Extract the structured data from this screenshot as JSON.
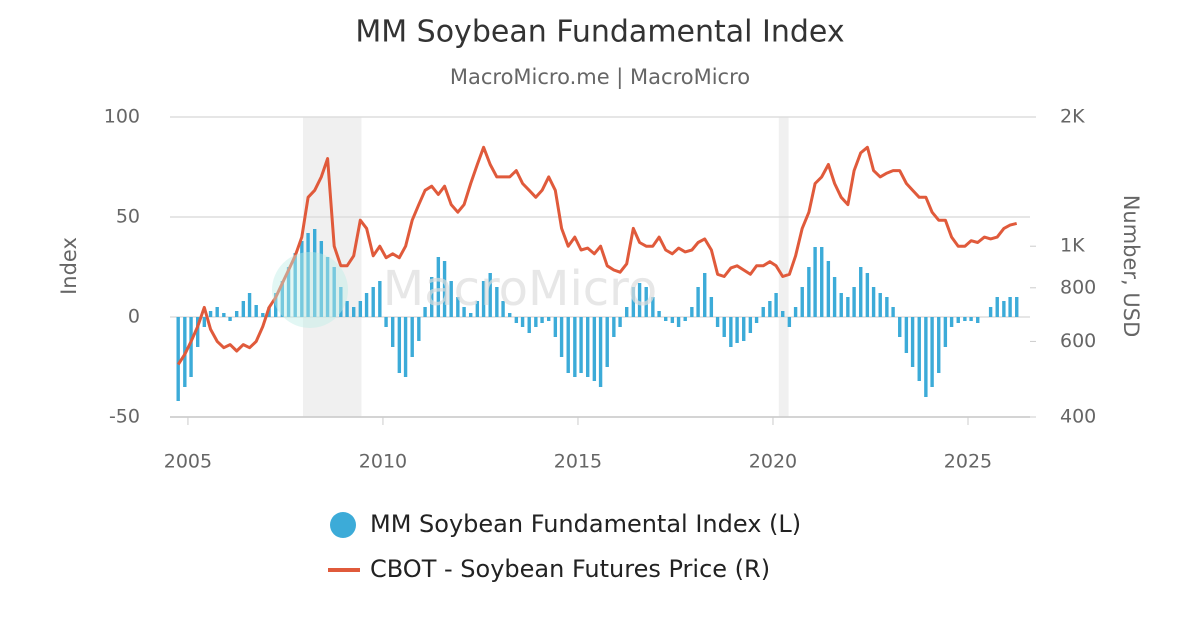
{
  "chart_data": {
    "type": "bar",
    "title": "MM Soybean Fundamental Index",
    "subtitle": "MacroMicro.me | MacroMicro",
    "watermark": "MacroMicro",
    "y_label": "Index",
    "y2_label": "Number, USD",
    "x": [
      2004.75,
      2004.92,
      2005.08,
      2005.25,
      2005.42,
      2005.58,
      2005.75,
      2005.92,
      2006.08,
      2006.25,
      2006.42,
      2006.58,
      2006.75,
      2006.92,
      2007.08,
      2007.25,
      2007.42,
      2007.58,
      2007.75,
      2007.92,
      2008.08,
      2008.25,
      2008.42,
      2008.58,
      2008.75,
      2008.92,
      2009.08,
      2009.25,
      2009.42,
      2009.58,
      2009.75,
      2009.92,
      2010.08,
      2010.25,
      2010.42,
      2010.58,
      2010.75,
      2010.92,
      2011.08,
      2011.25,
      2011.42,
      2011.58,
      2011.75,
      2011.92,
      2012.08,
      2012.25,
      2012.42,
      2012.58,
      2012.75,
      2012.92,
      2013.08,
      2013.25,
      2013.42,
      2013.58,
      2013.75,
      2013.92,
      2014.08,
      2014.25,
      2014.42,
      2014.58,
      2014.75,
      2014.92,
      2015.08,
      2015.25,
      2015.42,
      2015.58,
      2015.75,
      2015.92,
      2016.08,
      2016.25,
      2016.42,
      2016.58,
      2016.75,
      2016.92,
      2017.08,
      2017.25,
      2017.42,
      2017.58,
      2017.75,
      2017.92,
      2018.08,
      2018.25,
      2018.42,
      2018.58,
      2018.75,
      2018.92,
      2019.08,
      2019.25,
      2019.42,
      2019.58,
      2019.75,
      2019.92,
      2020.08,
      2020.25,
      2020.42,
      2020.58,
      2020.75,
      2020.92,
      2021.08,
      2021.25,
      2021.42,
      2021.58,
      2021.75,
      2021.92,
      2022.08,
      2022.25,
      2022.42,
      2022.58,
      2022.75,
      2022.92,
      2023.08,
      2023.25,
      2023.42,
      2023.58,
      2023.75,
      2023.92,
      2024.08,
      2024.25,
      2024.42,
      2024.58,
      2024.75,
      2024.92,
      2025.08,
      2025.25,
      2025.42,
      2025.58,
      2025.75,
      2025.92,
      2026.08,
      2026.25
    ],
    "series": [
      {
        "name": "MM Soybean Fundamental Index (L)",
        "type": "bar",
        "color": "#3cabd8",
        "values": [
          -42,
          -35,
          -30,
          -15,
          -5,
          3,
          5,
          2,
          -2,
          3,
          8,
          12,
          6,
          2,
          5,
          12,
          18,
          25,
          32,
          38,
          42,
          44,
          38,
          30,
          25,
          15,
          8,
          5,
          8,
          12,
          15,
          18,
          -5,
          -15,
          -28,
          -30,
          -20,
          -12,
          5,
          20,
          30,
          28,
          18,
          10,
          5,
          2,
          8,
          18,
          22,
          15,
          8,
          2,
          -3,
          -5,
          -8,
          -5,
          -3,
          -2,
          -10,
          -20,
          -28,
          -30,
          -28,
          -30,
          -32,
          -35,
          -25,
          -10,
          -5,
          5,
          15,
          17,
          15,
          10,
          3,
          -2,
          -3,
          -5,
          -2,
          5,
          15,
          22,
          10,
          -5,
          -10,
          -15,
          -13,
          -12,
          -8,
          -3,
          5,
          8,
          12,
          3,
          -5,
          5,
          15,
          25,
          35,
          35,
          28,
          20,
          12,
          10,
          15,
          25,
          22,
          15,
          12,
          10,
          5,
          -10,
          -18,
          -25,
          -32,
          -40,
          -35,
          -28,
          -15,
          -5,
          -3,
          -2,
          -2,
          -3,
          0,
          5,
          10,
          8,
          10,
          10
        ]
      },
      {
        "name": "CBOT - Soybean Futures Price (R)",
        "type": "line",
        "axis": "y2",
        "color": "#e05a3b",
        "values": [
          530,
          560,
          600,
          650,
          720,
          640,
          600,
          580,
          590,
          570,
          590,
          580,
          600,
          650,
          720,
          760,
          820,
          880,
          950,
          1050,
          1300,
          1350,
          1450,
          1600,
          1000,
          900,
          900,
          950,
          1150,
          1100,
          950,
          1000,
          940,
          960,
          940,
          1000,
          1150,
          1250,
          1350,
          1380,
          1320,
          1380,
          1250,
          1200,
          1250,
          1400,
          1550,
          1700,
          1550,
          1450,
          1450,
          1450,
          1500,
          1400,
          1350,
          1300,
          1350,
          1450,
          1350,
          1100,
          1000,
          1050,
          980,
          990,
          960,
          1000,
          900,
          880,
          870,
          910,
          1100,
          1020,
          1000,
          1000,
          1050,
          980,
          960,
          990,
          970,
          980,
          1020,
          1040,
          980,
          860,
          850,
          890,
          900,
          880,
          860,
          900,
          900,
          920,
          900,
          850,
          860,
          950,
          1100,
          1200,
          1400,
          1450,
          1550,
          1400,
          1300,
          1250,
          1500,
          1650,
          1700,
          1500,
          1450,
          1480,
          1500,
          1500,
          1400,
          1350,
          1300,
          1300,
          1200,
          1150,
          1150,
          1050,
          1000,
          1000,
          1030,
          1020,
          1050,
          1040,
          1050,
          1100,
          1120,
          1130
        ]
      }
    ],
    "shaded_ranges": [
      [
        2007.95,
        2009.45
      ],
      [
        2020.15,
        2020.4
      ]
    ],
    "xlim": [
      2004.54,
      2026.59
    ],
    "xticks": [
      2005,
      2010,
      2015,
      2020,
      2025
    ],
    "ylim": [
      -50,
      100
    ],
    "yticks": [
      -50,
      0,
      50,
      100
    ],
    "y2lim": [
      400,
      2000
    ],
    "y2ticks": [
      400,
      600,
      800,
      {
        "value": 1000,
        "label": "1K"
      },
      {
        "value": 2000,
        "label": "2K"
      }
    ],
    "y2_log": true,
    "grid": true
  }
}
